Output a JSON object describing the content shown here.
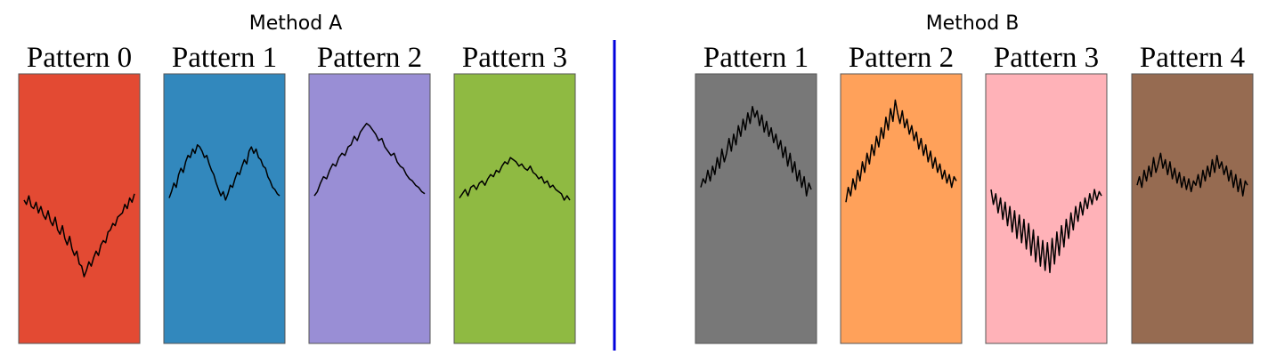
{
  "chart_data": {
    "type": "line",
    "divider_color": "#0000dd",
    "groups": [
      {
        "title": "Method A",
        "panels": [
          {
            "title": "Pattern 0",
            "color": "#e34a33",
            "values": [
              0.64,
              0.62,
              0.66,
              0.61,
              0.6,
              0.63,
              0.58,
              0.61,
              0.57,
              0.55,
              0.59,
              0.54,
              0.52,
              0.56,
              0.5,
              0.48,
              0.52,
              0.46,
              0.43,
              0.47,
              0.41,
              0.38,
              0.4,
              0.34,
              0.33,
              0.28,
              0.31,
              0.35,
              0.33,
              0.37,
              0.4,
              0.38,
              0.43,
              0.45,
              0.44,
              0.49,
              0.5,
              0.53,
              0.52,
              0.56,
              0.57,
              0.58,
              0.62,
              0.6,
              0.65,
              0.63,
              0.67
            ]
          },
          {
            "title": "Pattern 1",
            "color": "#3288bd",
            "values": [
              0.65,
              0.68,
              0.72,
              0.7,
              0.76,
              0.79,
              0.77,
              0.82,
              0.85,
              0.84,
              0.88,
              0.86,
              0.9,
              0.89,
              0.87,
              0.84,
              0.85,
              0.81,
              0.78,
              0.76,
              0.72,
              0.69,
              0.66,
              0.68,
              0.64,
              0.67,
              0.71,
              0.7,
              0.74,
              0.77,
              0.76,
              0.8,
              0.83,
              0.81,
              0.87,
              0.89,
              0.86,
              0.88,
              0.84,
              0.83,
              0.8,
              0.79,
              0.75,
              0.73,
              0.7,
              0.69,
              0.67,
              0.66
            ]
          },
          {
            "title": "Pattern 2",
            "color": "#998ed5",
            "values": [
              0.66,
              0.68,
              0.72,
              0.75,
              0.74,
              0.78,
              0.81,
              0.8,
              0.84,
              0.86,
              0.85,
              0.89,
              0.9,
              0.94,
              0.92,
              0.96,
              0.98,
              1.0,
              0.99,
              0.97,
              0.95,
              0.92,
              0.93,
              0.89,
              0.87,
              0.85,
              0.86,
              0.82,
              0.8,
              0.79,
              0.76,
              0.74,
              0.73,
              0.71,
              0.7,
              0.68,
              0.67
            ]
          },
          {
            "title": "Pattern 3",
            "color": "#8fba42",
            "values": [
              0.65,
              0.67,
              0.69,
              0.66,
              0.7,
              0.71,
              0.69,
              0.72,
              0.73,
              0.71,
              0.74,
              0.76,
              0.75,
              0.78,
              0.77,
              0.8,
              0.82,
              0.81,
              0.84,
              0.83,
              0.82,
              0.8,
              0.81,
              0.79,
              0.78,
              0.8,
              0.77,
              0.76,
              0.74,
              0.75,
              0.72,
              0.73,
              0.7,
              0.71,
              0.69,
              0.68,
              0.67,
              0.64,
              0.66,
              0.64
            ]
          }
        ]
      },
      {
        "title": "Method B",
        "panels": [
          {
            "title": "Pattern 1",
            "color": "#787878",
            "values": [
              0.7,
              0.74,
              0.72,
              0.78,
              0.73,
              0.8,
              0.76,
              0.84,
              0.79,
              0.88,
              0.82,
              0.86,
              0.93,
              0.87,
              0.95,
              0.9,
              0.99,
              0.94,
              1.02,
              0.97,
              1.05,
              1.0,
              1.08,
              1.03,
              1.06,
              0.99,
              1.04,
              0.96,
              1.01,
              0.94,
              0.98,
              0.91,
              0.95,
              0.88,
              0.92,
              0.84,
              0.89,
              0.8,
              0.86,
              0.77,
              0.82,
              0.73,
              0.78,
              0.7,
              0.75,
              0.66,
              0.72,
              0.69
            ]
          },
          {
            "title": "Pattern 2",
            "color": "#ffa15a",
            "values": [
              0.63,
              0.7,
              0.66,
              0.74,
              0.69,
              0.78,
              0.73,
              0.82,
              0.77,
              0.86,
              0.81,
              0.9,
              0.85,
              0.94,
              0.89,
              0.98,
              0.93,
              1.03,
              0.97,
              1.07,
              1.01,
              1.11,
              1.05,
              1.0,
              1.06,
              0.98,
              1.02,
              0.95,
              0.99,
              0.92,
              0.96,
              0.88,
              0.93,
              0.85,
              0.9,
              0.82,
              0.87,
              0.79,
              0.84,
              0.77,
              0.81,
              0.74,
              0.78,
              0.72,
              0.76,
              0.7,
              0.75,
              0.73
            ]
          },
          {
            "title": "Pattern 3",
            "color": "#ffb2b8",
            "values": [
              0.69,
              0.62,
              0.67,
              0.58,
              0.65,
              0.55,
              0.63,
              0.52,
              0.61,
              0.49,
              0.59,
              0.46,
              0.57,
              0.44,
              0.55,
              0.41,
              0.53,
              0.38,
              0.5,
              0.35,
              0.47,
              0.33,
              0.45,
              0.31,
              0.44,
              0.3,
              0.46,
              0.34,
              0.49,
              0.38,
              0.52,
              0.42,
              0.55,
              0.46,
              0.58,
              0.5,
              0.61,
              0.54,
              0.63,
              0.57,
              0.65,
              0.6,
              0.67,
              0.62,
              0.69,
              0.64,
              0.68,
              0.66
            ]
          },
          {
            "title": "Pattern 4",
            "color": "#966b51",
            "values": [
              0.71,
              0.75,
              0.7,
              0.78,
              0.73,
              0.8,
              0.75,
              0.84,
              0.77,
              0.81,
              0.86,
              0.79,
              0.83,
              0.76,
              0.82,
              0.74,
              0.79,
              0.72,
              0.77,
              0.7,
              0.75,
              0.69,
              0.74,
              0.68,
              0.73,
              0.71,
              0.76,
              0.7,
              0.78,
              0.73,
              0.8,
              0.75,
              0.83,
              0.77,
              0.85,
              0.79,
              0.82,
              0.76,
              0.8,
              0.73,
              0.78,
              0.7,
              0.76,
              0.68,
              0.74,
              0.66,
              0.73,
              0.71
            ]
          }
        ]
      }
    ]
  }
}
